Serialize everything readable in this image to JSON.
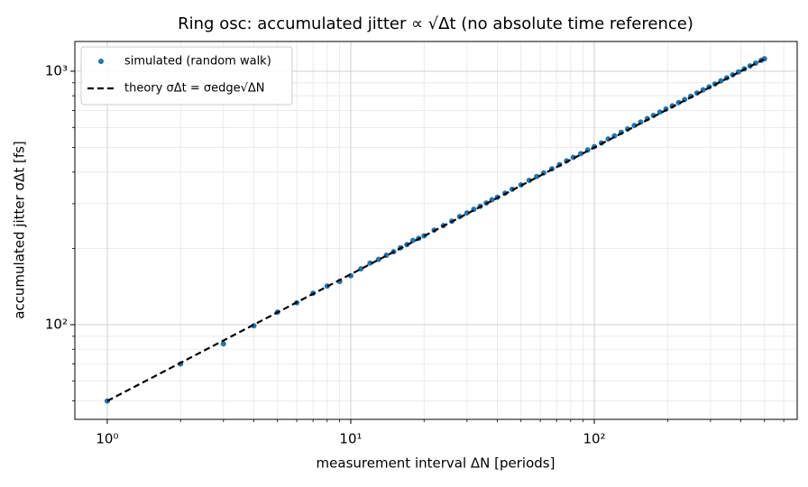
{
  "chart_data": {
    "type": "scatter",
    "title": "Ring osc: accumulated jitter ∝ √Δt (no absolute time reference)",
    "xlabel": "measurement interval ΔN [periods]",
    "ylabel": "accumulated jitter σΔt [fs]",
    "xscale": "log",
    "yscale": "log",
    "grid": true,
    "legend": "upper left",
    "xlim": [
      0.736,
      681
    ],
    "ylim": [
      42.3,
      1310
    ],
    "xticks": [
      {
        "value": 1,
        "label": "10⁰"
      },
      {
        "value": 10,
        "label": "10¹"
      },
      {
        "value": 100,
        "label": "10²"
      }
    ],
    "yticks": [
      {
        "value": 100,
        "label": "10²"
      },
      {
        "value": 1000,
        "label": "10³"
      }
    ],
    "xminorticks": [
      2,
      3,
      4,
      5,
      6,
      7,
      8,
      9,
      20,
      30,
      40,
      50,
      60,
      70,
      80,
      90,
      200,
      300,
      400,
      500,
      600
    ],
    "yminorticks": [
      50,
      60,
      70,
      80,
      90,
      200,
      300,
      400,
      500,
      600,
      700,
      800,
      900
    ],
    "series": [
      {
        "name": "simulated (random walk)",
        "mode": "markers",
        "color": "#1f77b4",
        "x": [
          1,
          2,
          3,
          4,
          5,
          6,
          7,
          8,
          9,
          10,
          11,
          12,
          13,
          14,
          15,
          16,
          17,
          18,
          19,
          20,
          22,
          24,
          26,
          28,
          30,
          32,
          34,
          36,
          38,
          40,
          43,
          46,
          50,
          54,
          58,
          62,
          67,
          72,
          77,
          82,
          88,
          94,
          100,
          107,
          114,
          121,
          129,
          137,
          146,
          155,
          165,
          175,
          186,
          197,
          209,
          222,
          235,
          249,
          264,
          280,
          296,
          313,
          331,
          350,
          370,
          391,
          413,
          436,
          460,
          485,
          500
        ],
        "values": [
          50,
          70,
          84,
          99,
          112,
          122,
          133,
          142,
          148,
          156,
          166,
          175,
          181,
          188,
          194,
          201,
          207,
          215,
          219,
          224,
          236,
          246,
          256,
          267,
          276,
          285,
          293,
          302,
          311,
          318,
          330,
          342,
          356,
          371,
          384,
          397,
          412,
          428,
          443,
          457,
          473,
          489,
          504,
          521,
          540,
          556,
          574,
          592,
          611,
          630,
          650,
          669,
          690,
          709,
          730,
          752,
          773,
          796,
          820,
          844,
          867,
          890,
          915,
          941,
          967,
          994,
          1021,
          1049,
          1076,
          1104,
          1120
        ]
      },
      {
        "name": "theory σΔt = σedge√ΔN",
        "mode": "dashed-line",
        "color": "#000000",
        "x": [
          1,
          2,
          5,
          10,
          20,
          50,
          100,
          200,
          500
        ],
        "values": [
          50,
          70.7,
          111.8,
          158.1,
          223.6,
          353.6,
          500,
          707.1,
          1118
        ]
      }
    ]
  }
}
